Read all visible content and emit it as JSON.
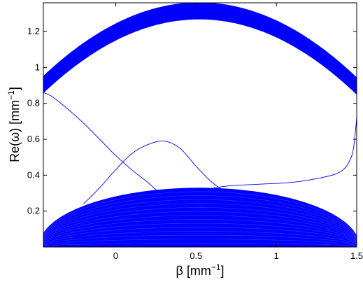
{
  "chart_data": {
    "type": "line",
    "title": "",
    "xlabel": "β [mm",
    "xlabel_sup": "−1",
    "xlabel_close": "]",
    "ylabel": "Re(ω) [mm",
    "ylabel_sup": "−1",
    "ylabel_close": "]",
    "xlim": [
      -0.45,
      1.5
    ],
    "ylim": [
      0.0,
      1.36
    ],
    "xticks": [
      0,
      0.5,
      1,
      1.5
    ],
    "xtick_labels": [
      "0",
      "0.5",
      "1",
      "1.5"
    ],
    "yticks": [
      0.2,
      0.4,
      0.6,
      0.8,
      1.0,
      1.2
    ],
    "ytick_labels": [
      "0.2",
      "0.4",
      "0.6",
      "0.8",
      "1",
      "1.2"
    ],
    "grid": false,
    "colors": {
      "bands": "#0000ff",
      "curves": "#0000ff"
    },
    "bands": [
      {
        "name": "upper-continuum",
        "center": 0.52,
        "half_width": 1.35,
        "top": 1.36,
        "top_edge": 0.95,
        "bottom": 1.27,
        "bottom_edge": 0.86
      },
      {
        "name": "lower-continuum",
        "center": 0.52,
        "half_width": 1.0,
        "top": 0.33,
        "lower_limit": 0.0
      }
    ],
    "series": [
      {
        "x": [
          -0.45,
          -0.4,
          -0.3,
          -0.2,
          -0.1,
          0.0,
          0.1,
          0.2,
          0.25,
          0.3
        ],
        "y": [
          0.86,
          0.84,
          0.77,
          0.69,
          0.6,
          0.51,
          0.43,
          0.36,
          0.32,
          0.3
        ]
      },
      {
        "x": [
          -0.2,
          -0.1,
          0.0,
          0.1,
          0.2,
          0.3,
          0.4,
          0.5,
          0.6,
          0.68
        ],
        "y": [
          0.24,
          0.33,
          0.43,
          0.52,
          0.57,
          0.59,
          0.55,
          0.45,
          0.36,
          0.31
        ]
      },
      {
        "x": [
          0.55,
          0.7,
          0.9,
          1.1,
          1.3,
          1.4,
          1.45,
          1.48,
          1.5
        ],
        "y": [
          0.32,
          0.34,
          0.35,
          0.36,
          0.39,
          0.42,
          0.47,
          0.55,
          0.72
        ]
      }
    ]
  }
}
